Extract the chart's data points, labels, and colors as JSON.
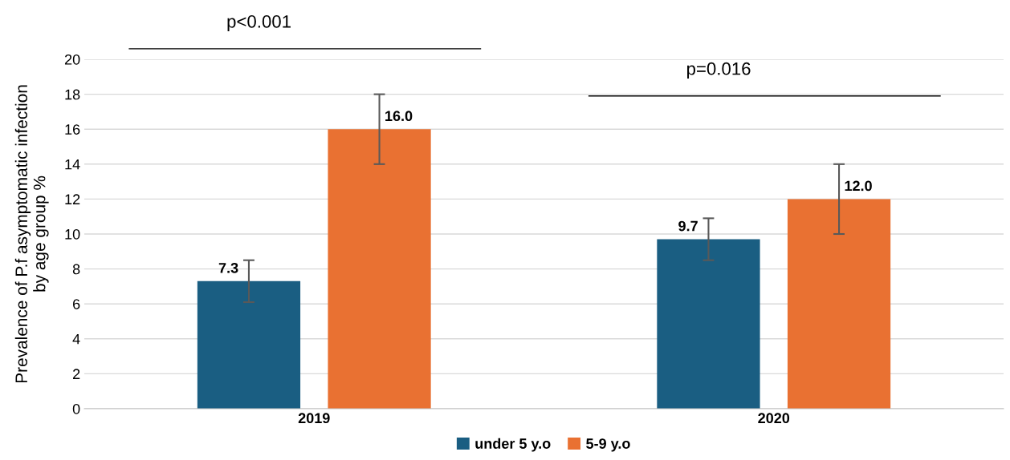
{
  "chart_data": {
    "type": "bar",
    "ylabel": "Prevalence of P.f asymptomatic infection\nby age group %",
    "categories": [
      "2019",
      "2020"
    ],
    "series": [
      {
        "name": "under 5 y.o",
        "color": "#1a5e82",
        "values": [
          7.3,
          9.7
        ],
        "errors": [
          1.2,
          1.2
        ],
        "value_labels": [
          "7.3",
          "9.7"
        ]
      },
      {
        "name": "5-9 y.o",
        "color": "#e97132",
        "values": [
          16.0,
          12.0
        ],
        "errors": [
          2,
          2
        ],
        "value_labels": [
          "16.0",
          "12.0"
        ]
      }
    ],
    "ylim": [
      0,
      20
    ],
    "yticks": [
      0,
      2,
      4,
      6,
      8,
      10,
      12,
      14,
      16,
      18,
      20
    ],
    "grid": "y",
    "legend": "bottom",
    "annotations": [
      "p<0.001",
      "p=0.016"
    ]
  }
}
